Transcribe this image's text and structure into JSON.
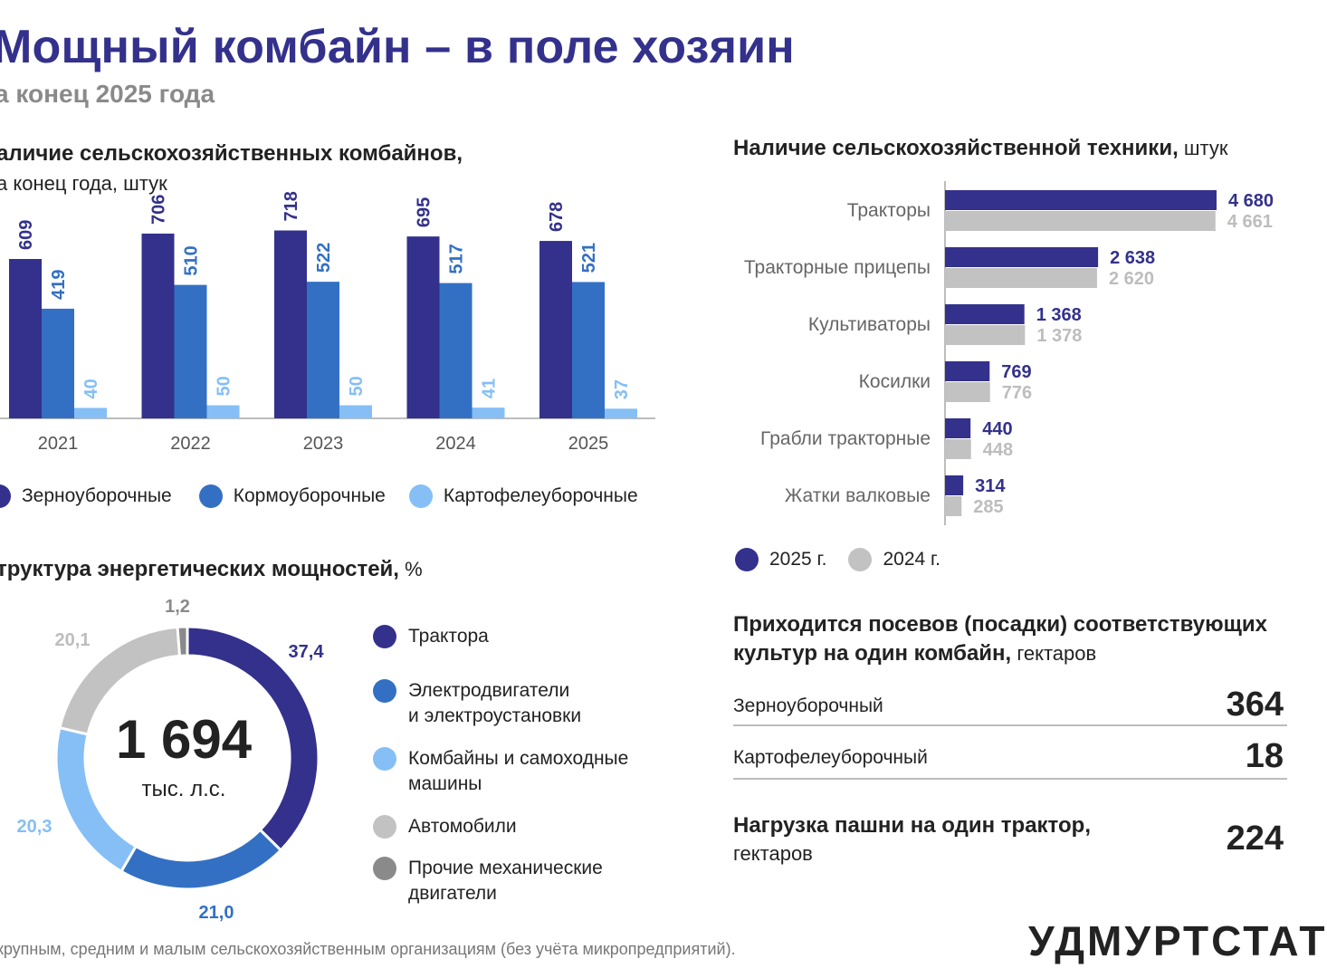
{
  "header": {
    "title": "Мощный комбайн – в поле хозяин",
    "subtitle": "а конец 2025 года"
  },
  "combines": {
    "title": "аличие сельскохозяйственных комбайнов,",
    "subtitle": "а конец года, штук",
    "legend": [
      "Зерноуборочные",
      "Кормоуборочные",
      "Картофелеуборочные"
    ]
  },
  "machinery": {
    "title_bold": "Наличие сельскохозяйственной техники,",
    "title_unit": " штук",
    "legend": [
      "2025 г.",
      "2024 г."
    ]
  },
  "energy": {
    "title_bold": "труктура энергетических мощностей,",
    "title_unit": " %",
    "center_value": "1 694",
    "center_unit": "тыс. л.с.",
    "legend": [
      [
        "Трактора"
      ],
      [
        "Электродвигатели",
        "и электроустановки"
      ],
      [
        "Комбайны и самоходные",
        "машины"
      ],
      [
        "Автомобили"
      ],
      [
        "Прочие механические",
        "двигатели"
      ]
    ]
  },
  "crops": {
    "title_line1": "Приходится посевов (посадки) соответствующих",
    "title_line2_bold": "культур на один комбайн,",
    "title_line2_unit": " гектаров",
    "rows": [
      {
        "label": "Зерноуборочный",
        "value": "364"
      },
      {
        "label": "Картофелеуборочный",
        "value": "18"
      }
    ]
  },
  "tractor_load": {
    "label_bold": "Нагрузка пашни на один трактор,",
    "label_unit": "гектаров",
    "value": "224"
  },
  "footnote": "крупным, средним и малым сельскохозяйственным организациям (без учёта микропредприятий).",
  "brand": "УДМУРТСТАТ",
  "chart_data": [
    {
      "type": "bar",
      "categories": [
        "2021",
        "2022",
        "2023",
        "2024",
        "2025"
      ],
      "series": [
        {
          "name": "Зерноуборочные",
          "values": [
            609,
            706,
            718,
            695,
            678
          ],
          "color": "#33318c"
        },
        {
          "name": "Кормоуборочные",
          "values": [
            419,
            510,
            522,
            517,
            521
          ],
          "color": "#3370c4"
        },
        {
          "name": "Картофелеуборочные",
          "values": [
            40,
            50,
            50,
            41,
            37
          ],
          "color": "#85bff5"
        }
      ],
      "ylim": [
        0,
        800
      ],
      "grid": false
    },
    {
      "type": "bar",
      "orientation": "horizontal",
      "categories": [
        "Тракторы",
        "Тракторные прицепы",
        "Культиваторы",
        "Косилки",
        "Грабли тракторные",
        "Жатки валковые"
      ],
      "series": [
        {
          "name": "2025 г.",
          "values": [
            4680,
            2638,
            1368,
            769,
            440,
            314
          ],
          "labels": [
            "4 680",
            "2 638",
            "1 368",
            "769",
            "440",
            "314"
          ],
          "color": "#33318c"
        },
        {
          "name": "2024 г.",
          "values": [
            4661,
            2620,
            1378,
            776,
            448,
            285
          ],
          "labels": [
            "4 661",
            "2 620",
            "1 378",
            "776",
            "448",
            "285"
          ],
          "color": "#c2c2c2"
        }
      ],
      "xlim": [
        0,
        4680
      ],
      "grid": false
    },
    {
      "type": "pie",
      "variant": "donut",
      "labels": [
        "Трактора",
        "Электродвигатели и электроустановки",
        "Комбайны и самоходные машины",
        "Автомобили",
        "Прочие механические двигатели"
      ],
      "values": [
        37.4,
        21.0,
        20.3,
        20.1,
        1.2
      ],
      "value_labels": [
        "37,4",
        "21,0",
        "20,3",
        "20,1",
        "1,2"
      ],
      "colors": [
        "#33318c",
        "#3370c4",
        "#85bff5",
        "#c2c2c2",
        "#8a8a8a"
      ],
      "label_colors": [
        "#33318c",
        "#3370c4",
        "#85bff5",
        "#bdbdbd",
        "#8a8a8a"
      ]
    }
  ]
}
